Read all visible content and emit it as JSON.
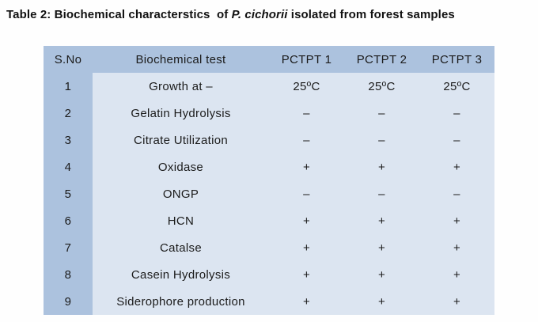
{
  "title": {
    "prefix": "Table 2: Biochemical characterstics  of ",
    "species": "P. cichorii",
    "suffix": " isolated from forest samples"
  },
  "colors": {
    "header_bg": "#acc2de",
    "sno_column_bg": "#acc2de",
    "body_bg": "#dce5f1",
    "text": "#1b1b1b"
  },
  "table": {
    "headers": {
      "sno": "S.No",
      "test": "Biochemical test",
      "col1": "PCTPT 1",
      "col2": "PCTPT 2",
      "col3": "PCTPT 3"
    },
    "rows": [
      {
        "sno": "1",
        "test": "Growth at –",
        "values": [
          "25ºC",
          "25ºC",
          "25ºC"
        ]
      },
      {
        "sno": "2",
        "test": "Gelatin Hydrolysis",
        "values": [
          "–",
          "–",
          "–"
        ]
      },
      {
        "sno": "3",
        "test": "Citrate Utilization",
        "values": [
          "–",
          "–",
          "–"
        ]
      },
      {
        "sno": "4",
        "test": "Oxidase",
        "values": [
          "+",
          "+",
          "+"
        ]
      },
      {
        "sno": "5",
        "test": "ONGP",
        "values": [
          "–",
          "–",
          "–"
        ]
      },
      {
        "sno": "6",
        "test": "HCN",
        "values": [
          "+",
          "+",
          "+"
        ]
      },
      {
        "sno": "7",
        "test": "Catalse",
        "values": [
          "+",
          "+",
          "+"
        ]
      },
      {
        "sno": "8",
        "test": "Casein Hydrolysis",
        "values": [
          "+",
          "+",
          "+"
        ]
      },
      {
        "sno": "9",
        "test": "Siderophore production",
        "values": [
          "+",
          "+",
          "+"
        ]
      }
    ]
  }
}
